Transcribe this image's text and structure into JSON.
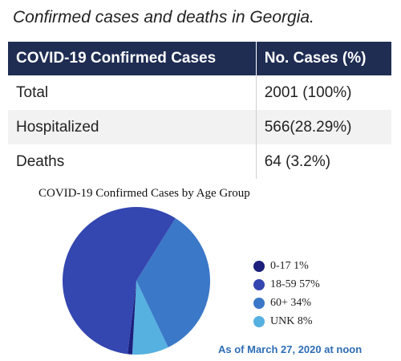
{
  "heading": "Confirmed cases and deaths in Georgia.",
  "table": {
    "headers": [
      "COVID-19 Confirmed Cases",
      "No. Cases (%)"
    ],
    "rows": [
      {
        "label": "Total",
        "value": "2001 (100%)"
      },
      {
        "label": "Hospitalized",
        "value": "566(28.29%)"
      },
      {
        "label": "Deaths",
        "value": "64 (3.2%)"
      }
    ]
  },
  "chart_data": {
    "type": "pie",
    "title": "COVID-19 Confirmed Cases by Age Group",
    "categories": [
      "0-17",
      "18-59",
      "60+",
      "UNK"
    ],
    "values": [
      1,
      57,
      34,
      8
    ],
    "legend_labels": [
      "0-17 1%",
      "18-59 57%",
      "60+ 34%",
      "UNK 8%"
    ],
    "colors": [
      "#1c1f7c",
      "#3446b0",
      "#3b78c8",
      "#56b0e0"
    ],
    "legend_position": "right"
  },
  "footer": "As of March 27, 2020 at noon"
}
